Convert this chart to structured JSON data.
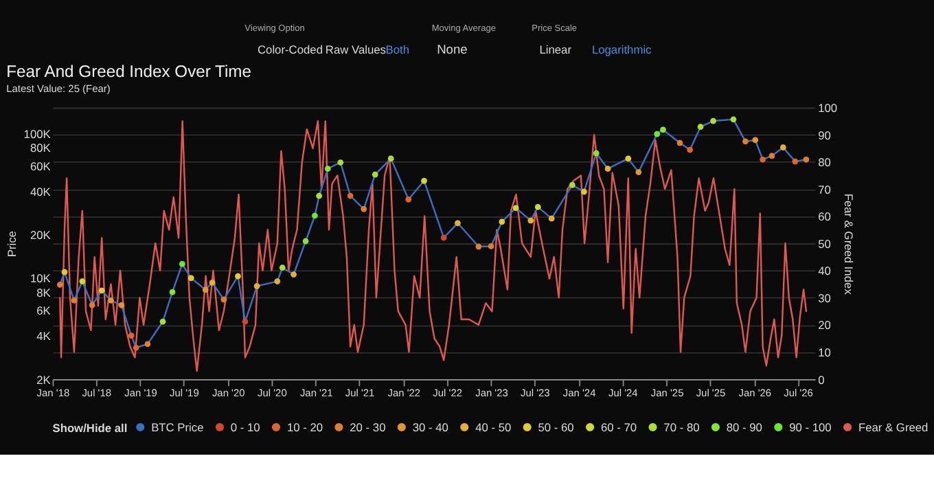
{
  "chart_data": {
    "type": "line",
    "title": "Fear And Greed Index Over Time",
    "subtitle": "Latest Value: 25 (Fear)",
    "ylabel": "Price",
    "y2label": "Fear & Greed Index",
    "legend_title": "Show/Hide all",
    "annotations": [
      "Viewing Option",
      "Color-Coded",
      "Raw Values",
      "Both",
      "Moving Average",
      "None",
      "Price Scale",
      "Linear",
      "Logarithmic"
    ],
    "log": "y",
    "grid": "y",
    "legend": "bottom",
    "xlim": [
      "2018-01-01",
      "2026-09-10"
    ],
    "xticks": [
      {
        "value": "2018-01-01",
        "label": "Jan '18"
      },
      {
        "value": "2018-07-01",
        "label": "Jul '18"
      },
      {
        "value": "2019-01-01",
        "label": "Jan '19"
      },
      {
        "value": "2019-07-01",
        "label": "Jul '19"
      },
      {
        "value": "2020-01-01",
        "label": "Jan '20"
      },
      {
        "value": "2020-07-01",
        "label": "Jul '20"
      },
      {
        "value": "2021-01-01",
        "label": "Jan '21"
      },
      {
        "value": "2021-07-01",
        "label": "Jul '21"
      },
      {
        "value": "2022-01-01",
        "label": "Jan '22"
      },
      {
        "value": "2022-07-01",
        "label": "Jul '22"
      },
      {
        "value": "2023-01-01",
        "label": "Jan '23"
      },
      {
        "value": "2023-07-01",
        "label": "Jul '23"
      },
      {
        "value": "2024-01-01",
        "label": "Jan '24"
      },
      {
        "value": "2024-07-01",
        "label": "Jul '24"
      },
      {
        "value": "2025-01-01",
        "label": "Jan '25"
      },
      {
        "value": "2025-07-01",
        "label": "Jul '25"
      },
      {
        "value": "2026-01-01",
        "label": "Jan '26"
      },
      {
        "value": "2026-07-01",
        "label": "Jul '26"
      }
    ],
    "ylim": [
      2000,
      151000
    ],
    "yticks": [
      {
        "value": 2000,
        "label": "2K"
      },
      {
        "value": 4000,
        "label": "4K"
      },
      {
        "value": 6000,
        "label": "6K"
      },
      {
        "value": 8000,
        "label": "8K"
      },
      {
        "value": 10000,
        "label": "10K"
      },
      {
        "value": 20000,
        "label": "20K"
      },
      {
        "value": 40000,
        "label": "40K"
      },
      {
        "value": 60000,
        "label": "60K"
      },
      {
        "value": 80000,
        "label": "80K"
      },
      {
        "value": 100000,
        "label": "100K"
      }
    ],
    "y2lim": [
      0,
      100
    ],
    "y2ticks": [
      0,
      10,
      20,
      30,
      40,
      50,
      60,
      70,
      80,
      90,
      100
    ],
    "series": [
      {
        "name": "BTC Price",
        "type": "line",
        "axis": "y",
        "color": "#3b6fc4",
        "x": [
          "2018-02-01",
          "2018-02-20",
          "2018-04-01",
          "2018-05-05",
          "2018-06-15",
          "2018-07-25",
          "2018-09-01",
          "2018-10-15",
          "2018-11-25",
          "2018-12-15",
          "2019-02-01",
          "2019-04-05",
          "2019-05-15",
          "2019-06-25",
          "2019-08-01",
          "2019-09-30",
          "2019-10-28",
          "2019-12-15",
          "2020-02-12",
          "2020-03-13",
          "2020-05-01",
          "2020-07-25",
          "2020-08-15",
          "2020-10-01",
          "2020-11-20",
          "2020-12-28",
          "2021-01-15",
          "2021-02-20",
          "2021-04-14",
          "2021-05-25",
          "2021-07-20",
          "2021-09-05",
          "2021-11-10",
          "2022-01-22",
          "2022-03-28",
          "2022-06-18",
          "2022-08-15",
          "2022-11-10",
          "2023-01-01",
          "2023-02-15",
          "2023-04-14",
          "2023-06-15",
          "2023-07-15",
          "2023-09-10",
          "2023-12-05",
          "2024-01-23",
          "2024-03-14",
          "2024-05-01",
          "2024-07-25",
          "2024-09-06",
          "2024-11-22",
          "2024-12-17",
          "2025-02-25",
          "2025-04-08",
          "2025-05-22",
          "2025-07-14",
          "2025-10-06",
          "2025-11-25",
          "2026-01-05",
          "2026-02-05",
          "2026-03-15",
          "2026-05-01",
          "2026-06-20",
          "2026-08-05"
        ],
        "values": [
          9000,
          11000,
          7000,
          9500,
          6500,
          8200,
          7000,
          6500,
          4000,
          3300,
          3500,
          5000,
          8000,
          12500,
          10000,
          8300,
          9300,
          7100,
          10300,
          5000,
          8800,
          9500,
          11800,
          10600,
          18000,
          27000,
          37000,
          57000,
          63000,
          37000,
          30000,
          52000,
          67000,
          35000,
          47000,
          19000,
          24000,
          16500,
          16600,
          24500,
          30500,
          25000,
          31000,
          25800,
          44000,
          39500,
          73000,
          57000,
          67000,
          54000,
          99000,
          106000,
          86000,
          77000,
          111000,
          122000,
          125000,
          88000,
          90000,
          66000,
          70000,
          80000,
          64000,
          66000
        ]
      },
      {
        "name": "0 - 10",
        "type": "scatter",
        "axis": "y",
        "color": "#d6452c",
        "x": [
          "2020-03-13",
          "2022-06-18"
        ],
        "values": [
          5000,
          19000
        ]
      },
      {
        "name": "10 - 20",
        "type": "scatter",
        "axis": "y",
        "color": "#e0652a",
        "x": [
          "2018-11-25",
          "2018-12-15",
          "2021-05-25",
          "2022-01-22",
          "2025-04-08",
          "2026-02-05",
          "2026-06-20"
        ],
        "values": [
          4000,
          3300,
          37000,
          35000,
          77000,
          66000,
          64000
        ]
      },
      {
        "name": "20 - 30",
        "type": "scatter",
        "axis": "y",
        "color": "#e27e2a",
        "x": [
          "2018-02-01",
          "2018-04-01",
          "2018-06-15",
          "2019-02-01",
          "2019-12-15",
          "2021-07-20",
          "2022-11-10",
          "2023-01-01",
          "2025-02-25",
          "2025-11-25",
          "2026-03-15",
          "2026-08-05"
        ],
        "values": [
          9000,
          7000,
          6500,
          3500,
          7100,
          30000,
          16500,
          16600,
          86000,
          88000,
          70000,
          66000
        ]
      },
      {
        "name": "30 - 40",
        "type": "scatter",
        "axis": "y",
        "color": "#e5962b",
        "x": [
          "2018-09-01",
          "2018-10-15",
          "2019-09-30",
          "2024-09-06",
          "2026-01-05"
        ],
        "values": [
          7000,
          6500,
          8300,
          54000,
          90000
        ]
      },
      {
        "name": "40 - 50",
        "type": "scatter",
        "axis": "y",
        "color": "#e7b02c",
        "x": [
          "2019-10-28",
          "2020-05-01",
          "2020-07-25",
          "2020-10-01",
          "2022-08-15",
          "2023-06-15",
          "2023-09-10",
          "2024-05-01",
          "2026-05-01"
        ],
        "values": [
          9300,
          8800,
          9500,
          10600,
          24000,
          25000,
          25800,
          57000,
          80000
        ]
      },
      {
        "name": "50 - 60",
        "type": "scatter",
        "axis": "y",
        "color": "#e4c92c",
        "x": [
          "2018-02-20",
          "2018-07-25",
          "2019-08-01",
          "2020-02-12",
          "2023-02-15",
          "2024-01-23",
          "2024-07-25"
        ],
        "values": [
          11000,
          8200,
          10000,
          10300,
          24500,
          39500,
          67000
        ]
      },
      {
        "name": "60 - 70",
        "type": "scatter",
        "axis": "y",
        "color": "#cfd82d",
        "x": [
          "2018-05-05",
          "2022-03-28",
          "2023-04-14",
          "2023-07-15"
        ],
        "values": [
          9500,
          47000,
          30500,
          31000
        ]
      },
      {
        "name": "70 - 80",
        "type": "scatter",
        "axis": "y",
        "color": "#a9e02f",
        "x": [
          "2019-04-05",
          "2020-08-15",
          "2021-01-15",
          "2021-04-14",
          "2021-09-05",
          "2021-11-10",
          "2023-12-05",
          "2025-05-22",
          "2025-07-14",
          "2025-10-06"
        ],
        "values": [
          5000,
          11800,
          37000,
          63000,
          52000,
          67000,
          44000,
          111000,
          122000,
          125000
        ]
      },
      {
        "name": "80 - 90",
        "type": "scatter",
        "axis": "y",
        "color": "#86e431",
        "x": [
          "2019-05-15",
          "2020-11-20",
          "2021-02-20",
          "2024-03-14",
          "2024-12-17"
        ],
        "values": [
          8000,
          18000,
          57000,
          73000,
          106000
        ]
      },
      {
        "name": "90 - 100",
        "type": "scatter",
        "axis": "y",
        "color": "#69e833",
        "x": [
          "2019-06-25",
          "2020-12-28",
          "2024-11-22"
        ],
        "values": [
          12500,
          27000,
          99000
        ]
      },
      {
        "name": "Fear & Greed",
        "type": "line",
        "axis": "y2",
        "color": "#e0584f",
        "x": [
          "2018-02-01",
          "2018-02-06",
          "2018-02-20",
          "2018-03-01",
          "2018-03-15",
          "2018-04-01",
          "2018-04-20",
          "2018-05-05",
          "2018-05-20",
          "2018-06-10",
          "2018-06-25",
          "2018-07-10",
          "2018-07-25",
          "2018-08-10",
          "2018-09-01",
          "2018-09-20",
          "2018-10-10",
          "2018-10-30",
          "2018-11-20",
          "2018-12-10",
          "2018-12-30",
          "2019-01-15",
          "2019-02-10",
          "2019-03-05",
          "2019-03-25",
          "2019-04-10",
          "2019-05-01",
          "2019-05-20",
          "2019-06-10",
          "2019-06-26",
          "2019-07-10",
          "2019-07-25",
          "2019-08-10",
          "2019-08-25",
          "2019-09-15",
          "2019-10-01",
          "2019-10-15",
          "2019-11-01",
          "2019-11-25",
          "2019-12-15",
          "2020-01-10",
          "2020-01-30",
          "2020-02-15",
          "2020-03-05",
          "2020-03-13",
          "2020-04-01",
          "2020-04-25",
          "2020-05-10",
          "2020-05-25",
          "2020-06-15",
          "2020-07-01",
          "2020-07-25",
          "2020-08-10",
          "2020-08-25",
          "2020-09-10",
          "2020-09-25",
          "2020-10-15",
          "2020-11-05",
          "2020-11-25",
          "2020-12-20",
          "2021-01-10",
          "2021-01-25",
          "2021-02-10",
          "2021-02-25",
          "2021-03-10",
          "2021-04-01",
          "2021-04-25",
          "2021-05-10",
          "2021-05-25",
          "2021-06-10",
          "2021-06-25",
          "2021-07-20",
          "2021-08-10",
          "2021-08-25",
          "2021-09-10",
          "2021-10-15",
          "2021-11-05",
          "2021-11-25",
          "2021-12-10",
          "2022-01-10",
          "2022-01-24",
          "2022-02-15",
          "2022-03-10",
          "2022-03-30",
          "2022-04-20",
          "2022-05-10",
          "2022-06-01",
          "2022-06-18",
          "2022-07-10",
          "2022-08-10",
          "2022-08-30",
          "2022-10-01",
          "2022-11-10",
          "2022-12-10",
          "2023-01-05",
          "2023-01-25",
          "2023-02-10",
          "2023-03-10",
          "2023-03-25",
          "2023-04-15",
          "2023-05-10",
          "2023-06-15",
          "2023-07-05",
          "2023-08-01",
          "2023-09-01",
          "2023-09-20",
          "2023-10-10",
          "2023-10-25",
          "2023-11-15",
          "2023-12-10",
          "2024-01-10",
          "2024-01-25",
          "2024-02-15",
          "2024-03-05",
          "2024-03-25",
          "2024-04-15",
          "2024-05-01",
          "2024-05-20",
          "2024-06-15",
          "2024-07-05",
          "2024-07-25",
          "2024-08-08",
          "2024-08-25",
          "2024-09-10",
          "2024-10-05",
          "2024-10-25",
          "2024-11-15",
          "2024-12-05",
          "2024-12-25",
          "2025-01-20",
          "2025-02-15",
          "2025-02-28",
          "2025-03-15",
          "2025-04-10",
          "2025-04-25",
          "2025-05-15",
          "2025-06-10",
          "2025-06-25",
          "2025-07-15",
          "2025-08-10",
          "2025-09-01",
          "2025-09-20",
          "2025-10-10",
          "2025-10-20",
          "2025-11-10",
          "2025-11-25",
          "2025-12-15",
          "2026-01-10",
          "2026-01-25",
          "2026-02-05",
          "2026-02-20",
          "2026-03-10",
          "2026-03-25",
          "2026-04-10",
          "2026-04-25",
          "2026-05-10",
          "2026-05-25",
          "2026-06-10",
          "2026-06-25",
          "2026-07-10",
          "2026-07-25",
          "2026-08-05"
        ],
        "values": [
          30,
          8,
          55,
          74,
          30,
          10,
          45,
          62,
          25,
          18,
          45,
          27,
          52,
          22,
          35,
          20,
          40,
          20,
          12,
          8,
          30,
          20,
          35,
          50,
          40,
          62,
          55,
          67,
          52,
          95,
          60,
          30,
          15,
          3,
          20,
          38,
          25,
          40,
          18,
          25,
          40,
          52,
          68,
          30,
          8,
          12,
          20,
          50,
          40,
          55,
          40,
          50,
          84,
          70,
          40,
          48,
          55,
          80,
          92,
          85,
          95,
          70,
          95,
          55,
          72,
          75,
          60,
          45,
          12,
          20,
          10,
          20,
          55,
          72,
          30,
          75,
          82,
          40,
          25,
          20,
          10,
          38,
          30,
          60,
          25,
          15,
          12,
          7,
          20,
          45,
          22,
          22,
          20,
          28,
          25,
          55,
          48,
          33,
          62,
          68,
          50,
          45,
          62,
          50,
          37,
          45,
          30,
          55,
          70,
          73,
          75,
          50,
          70,
          90,
          75,
          70,
          43,
          76,
          64,
          26,
          74,
          17,
          48,
          30,
          60,
          72,
          88,
          78,
          70,
          77,
          45,
          10,
          30,
          38,
          60,
          74,
          62,
          65,
          74,
          60,
          48,
          42,
          70,
          28,
          20,
          10,
          25,
          30,
          61,
          12,
          5,
          15,
          22,
          8,
          16,
          50,
          30,
          22,
          8,
          23,
          33,
          25
        ]
      }
    ]
  }
}
